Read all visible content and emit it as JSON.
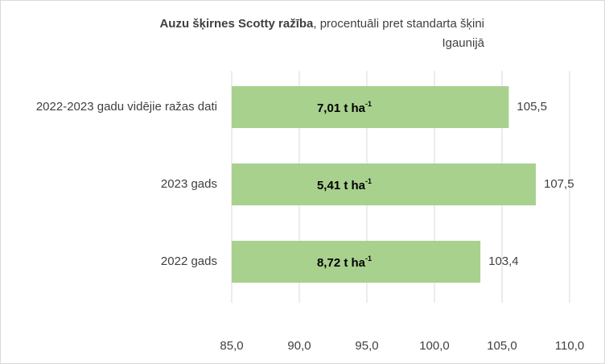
{
  "chart_data": {
    "type": "bar",
    "orientation": "horizontal",
    "title": [
      "Auzu šķirnes Scotty ražība",
      ", procentuāli pret standarta šķini",
      "Igaunijā"
    ],
    "categories": [
      "2022-2023 gadu vidējie ražas dati",
      "2023 gads",
      "2022 gads"
    ],
    "values": [
      105.5,
      107.5,
      103.4
    ],
    "value_labels": [
      "105,5",
      "107,5",
      "103,4"
    ],
    "annotations": [
      {
        "text": "7,01 t ha",
        "sup": "-1"
      },
      {
        "text": "5,41 t ha",
        "sup": "-1"
      },
      {
        "text": "8,72 t ha",
        "sup": "-1"
      }
    ],
    "color": "#a9d18e",
    "xlim": [
      85,
      110
    ],
    "xticks": [
      {
        "value": 85,
        "label": "85,0"
      },
      {
        "value": 90,
        "label": "90,0"
      },
      {
        "value": 95,
        "label": "95,0"
      },
      {
        "value": 100,
        "label": "100,0"
      },
      {
        "value": 105,
        "label": "105,0"
      },
      {
        "value": 110,
        "label": "110,0"
      }
    ],
    "grid": true
  }
}
